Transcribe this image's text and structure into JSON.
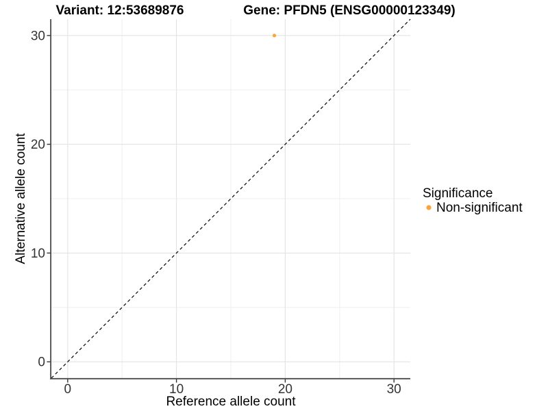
{
  "chart_data": {
    "type": "scatter",
    "titles": {
      "left": "Variant: 12:53689876",
      "right": "Gene: PFDN5 (ENSG00000123349)"
    },
    "xlabel": "Reference allele count",
    "ylabel": "Alternative allele count",
    "xlim": [
      -1.5,
      31.5
    ],
    "ylim": [
      -1.5,
      31.5
    ],
    "x_ticks": [
      0,
      10,
      20,
      30
    ],
    "y_ticks": [
      0,
      10,
      20,
      30
    ],
    "x_minor_ticks": [
      5,
      15,
      25
    ],
    "y_minor_ticks": [
      5,
      15,
      25
    ],
    "grid": "major and minor, light gray, white background",
    "reference_line": {
      "kind": "identity y=x",
      "style": "dashed",
      "color": "#000000"
    },
    "series": [
      {
        "name": "Non-significant",
        "color": "#FAA43A",
        "points": [
          {
            "x": 19,
            "y": 30
          }
        ]
      }
    ],
    "legend": {
      "title": "Significance",
      "position": "right",
      "items": [
        {
          "label": "Non-significant",
          "color": "#FAA43A",
          "marker": "dot"
        }
      ]
    },
    "colors": {
      "background": "#FFFFFF",
      "grid_major": "#E3E3E3",
      "grid_minor": "#EFEFEF",
      "axis_line": "#4A4A4A",
      "tick_mark": "#333333",
      "tick_label": "#333333",
      "title_text": "#000000",
      "point": "#FAA43A"
    }
  }
}
